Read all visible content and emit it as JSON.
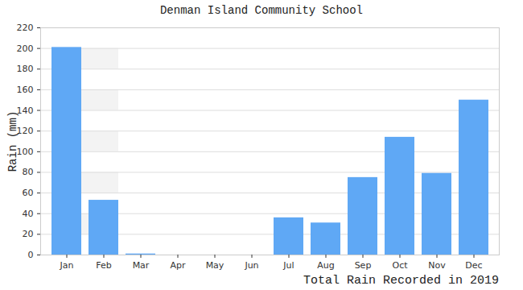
{
  "chart_data": {
    "type": "bar",
    "title": "Denman Island Community School",
    "caption": "Total Rain Recorded in 2019",
    "y_label": "Rain (mm)",
    "categories": [
      "Jan",
      "Feb",
      "Mar",
      "Apr",
      "May",
      "Jun",
      "Jul",
      "Aug",
      "Sep",
      "Oct",
      "Nov",
      "Dec"
    ],
    "values": [
      201,
      53,
      1,
      0,
      0,
      0,
      36,
      31,
      75,
      114,
      79,
      150
    ],
    "color": "#5fa8f5",
    "ylim": [
      0,
      220
    ],
    "yticks": [
      0,
      20,
      40,
      60,
      80,
      100,
      120,
      140,
      160,
      180,
      200,
      220
    ],
    "grid": true
  }
}
